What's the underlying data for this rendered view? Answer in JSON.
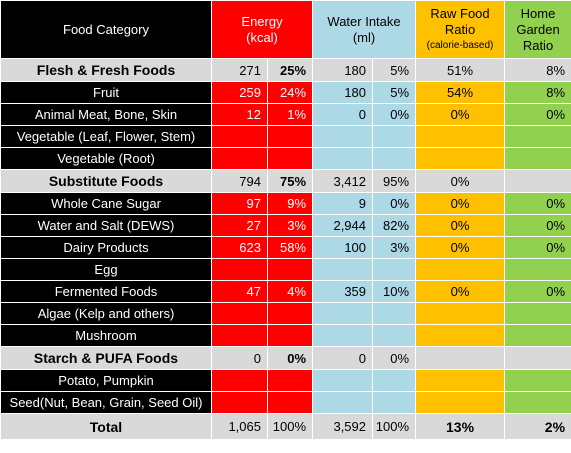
{
  "header": {
    "food_category": "Food Category",
    "energy_line1": "Energy",
    "energy_line2": "(kcal)",
    "water_line1": "Water Intake",
    "water_line2": "(ml)",
    "raw_line1": "Raw Food",
    "raw_line2": "Ratio",
    "raw_line3": "(calorie-based)",
    "garden_line1": "Home",
    "garden_line2": "Garden",
    "garden_line3": "Ratio"
  },
  "rows": [
    {
      "type": "cat",
      "name": "Flesh & Fresh Foods",
      "kcal": "271",
      "kcal_pct": "25%",
      "water": "180",
      "water_pct": "5%",
      "raw": "51%",
      "garden": "8%"
    },
    {
      "type": "item",
      "name": "Fruit",
      "kcal": "259",
      "kcal_pct": "24%",
      "water": "180",
      "water_pct": "5%",
      "raw": "54%",
      "garden": "8%"
    },
    {
      "type": "item",
      "name": "Animal Meat, Bone, Skin",
      "kcal": "12",
      "kcal_pct": "1%",
      "water": "0",
      "water_pct": "0%",
      "raw": "0%",
      "garden": "0%"
    },
    {
      "type": "item",
      "name": "Vegetable (Leaf, Flower, Stem)",
      "kcal": "",
      "kcal_pct": "",
      "water": "",
      "water_pct": "",
      "raw": "",
      "garden": ""
    },
    {
      "type": "item",
      "name": "Vegetable (Root)",
      "kcal": "",
      "kcal_pct": "",
      "water": "",
      "water_pct": "",
      "raw": "",
      "garden": ""
    },
    {
      "type": "cat",
      "name": "Substitute Foods",
      "kcal": "794",
      "kcal_pct": "75%",
      "water": "3,412",
      "water_pct": "95%",
      "raw": "0%",
      "garden": ""
    },
    {
      "type": "item",
      "name": "Whole Cane Sugar",
      "kcal": "97",
      "kcal_pct": "9%",
      "water": "9",
      "water_pct": "0%",
      "raw": "0%",
      "garden": "0%"
    },
    {
      "type": "item",
      "name": "Water and Salt (DEWS)",
      "kcal": "27",
      "kcal_pct": "3%",
      "water": "2,944",
      "water_pct": "82%",
      "raw": "0%",
      "garden": "0%"
    },
    {
      "type": "item",
      "name": "Dairy Products",
      "kcal": "623",
      "kcal_pct": "58%",
      "water": "100",
      "water_pct": "3%",
      "raw": "0%",
      "garden": "0%"
    },
    {
      "type": "item",
      "name": "Egg",
      "kcal": "",
      "kcal_pct": "",
      "water": "",
      "water_pct": "",
      "raw": "",
      "garden": ""
    },
    {
      "type": "item",
      "name": "Fermented Foods",
      "kcal": "47",
      "kcal_pct": "4%",
      "water": "359",
      "water_pct": "10%",
      "raw": "0%",
      "garden": "0%"
    },
    {
      "type": "item",
      "name": "Algae (Kelp and others)",
      "kcal": "",
      "kcal_pct": "",
      "water": "",
      "water_pct": "",
      "raw": "",
      "garden": ""
    },
    {
      "type": "item",
      "name": "Mushroom",
      "kcal": "",
      "kcal_pct": "",
      "water": "",
      "water_pct": "",
      "raw": "",
      "garden": ""
    },
    {
      "type": "cat",
      "name": "Starch & PUFA Foods",
      "kcal": "0",
      "kcal_pct": "0%",
      "water": "0",
      "water_pct": "0%",
      "raw": "",
      "garden": ""
    },
    {
      "type": "item",
      "name": "Potato, Pumpkin",
      "kcal": "",
      "kcal_pct": "",
      "water": "",
      "water_pct": "",
      "raw": "",
      "garden": ""
    },
    {
      "type": "item",
      "name": "Seed(Nut, Bean, Grain, Seed Oil)",
      "kcal": "",
      "kcal_pct": "",
      "water": "",
      "water_pct": "",
      "raw": "",
      "garden": ""
    }
  ],
  "total": {
    "name": "Total",
    "kcal": "1,065",
    "kcal_pct": "100%",
    "water": "3,592",
    "water_pct": "100%",
    "raw": "13%",
    "garden": "2%"
  },
  "colors": {
    "energy": "#ff0000",
    "water": "#add8e6",
    "raw": "#ffc000",
    "garden": "#92d050",
    "category": "#d9d9d9",
    "item_label": "#000000"
  }
}
